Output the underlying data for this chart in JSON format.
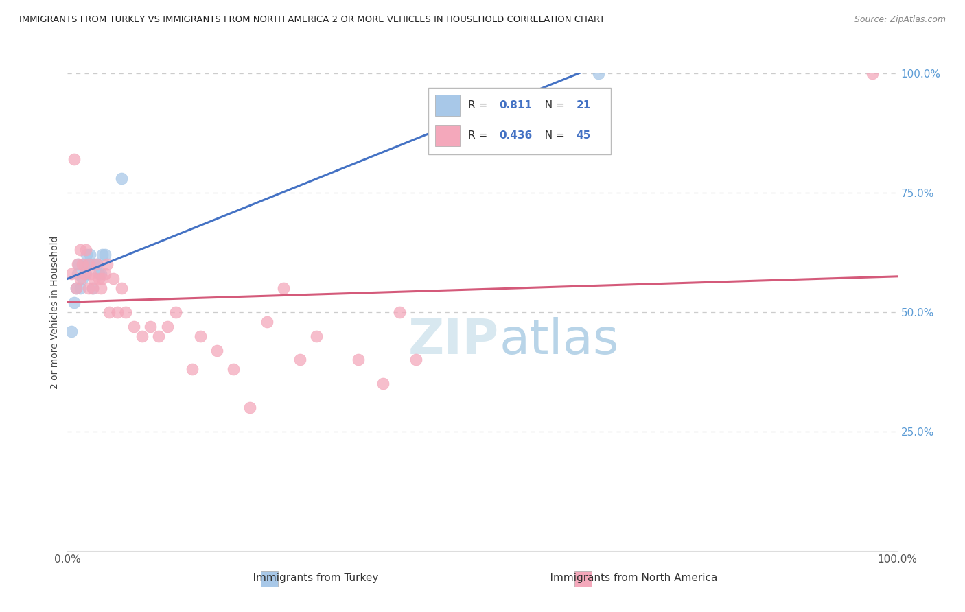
{
  "title": "IMMIGRANTS FROM TURKEY VS IMMIGRANTS FROM NORTH AMERICA 2 OR MORE VEHICLES IN HOUSEHOLD CORRELATION CHART",
  "source": "Source: ZipAtlas.com",
  "ylabel": "2 or more Vehicles in Household",
  "blue_R": 0.811,
  "blue_N": 21,
  "pink_R": 0.436,
  "pink_N": 45,
  "blue_color": "#A8C8E8",
  "pink_color": "#F4A8BB",
  "blue_line_color": "#4472C4",
  "pink_line_color": "#D45A7A",
  "background_color": "#FFFFFF",
  "grid_color": "#CCCCCC",
  "right_tick_color": "#5B9BD5",
  "legend_blue_label": "Immigrants from Turkey",
  "legend_pink_label": "Immigrants from North America",
  "blue_x": [
    0.005,
    0.008,
    0.01,
    0.012,
    0.013,
    0.015,
    0.018,
    0.02,
    0.022,
    0.023,
    0.025,
    0.027,
    0.03,
    0.032,
    0.035,
    0.038,
    0.04,
    0.042,
    0.045,
    0.065,
    0.64
  ],
  "blue_y": [
    0.46,
    0.52,
    0.55,
    0.58,
    0.6,
    0.55,
    0.57,
    0.6,
    0.58,
    0.62,
    0.6,
    0.62,
    0.55,
    0.6,
    0.6,
    0.58,
    0.58,
    0.62,
    0.62,
    0.78,
    1.0
  ],
  "pink_x": [
    0.005,
    0.008,
    0.01,
    0.012,
    0.015,
    0.015,
    0.018,
    0.02,
    0.022,
    0.025,
    0.025,
    0.028,
    0.03,
    0.032,
    0.035,
    0.038,
    0.04,
    0.042,
    0.045,
    0.048,
    0.05,
    0.055,
    0.06,
    0.065,
    0.07,
    0.08,
    0.09,
    0.1,
    0.11,
    0.12,
    0.13,
    0.15,
    0.16,
    0.18,
    0.2,
    0.22,
    0.24,
    0.26,
    0.28,
    0.3,
    0.35,
    0.38,
    0.4,
    0.42,
    0.97
  ],
  "pink_y": [
    0.58,
    0.82,
    0.55,
    0.6,
    0.57,
    0.63,
    0.6,
    0.58,
    0.63,
    0.55,
    0.6,
    0.58,
    0.55,
    0.57,
    0.6,
    0.57,
    0.55,
    0.57,
    0.58,
    0.6,
    0.5,
    0.57,
    0.5,
    0.55,
    0.5,
    0.47,
    0.45,
    0.47,
    0.45,
    0.47,
    0.5,
    0.38,
    0.45,
    0.42,
    0.38,
    0.3,
    0.48,
    0.55,
    0.4,
    0.45,
    0.4,
    0.35,
    0.5,
    0.4,
    1.0
  ]
}
